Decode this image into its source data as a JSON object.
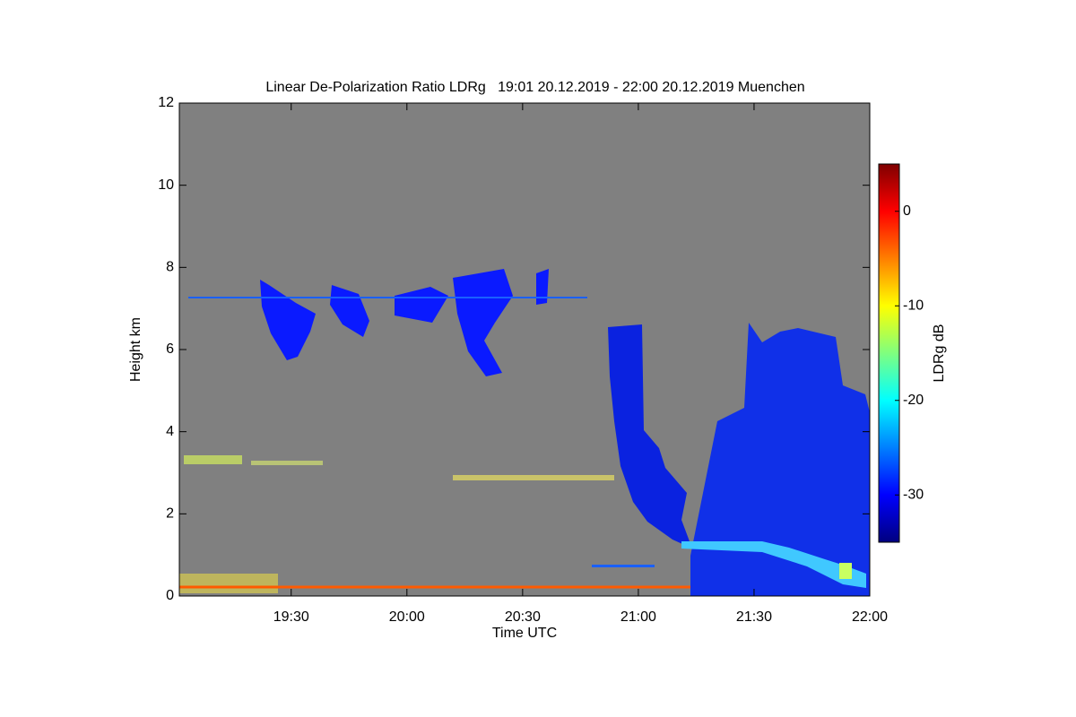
{
  "chart_data": {
    "type": "heatmap",
    "title": "Linear De-Polarization Ratio LDRg   19:01 20.12.2019 - 22:00 20.12.2019 Muenchen",
    "x_label": "Time UTC",
    "y_label": "Height km",
    "xlim": [
      1141,
      1320
    ],
    "xticks": [
      {
        "value": 1170,
        "label": "19:30"
      },
      {
        "value": 1200,
        "label": "20:00"
      },
      {
        "value": 1230,
        "label": "20:30"
      },
      {
        "value": 1260,
        "label": "21:00"
      },
      {
        "value": 1290,
        "label": "21:30"
      },
      {
        "value": 1320,
        "label": "22:00"
      }
    ],
    "ylim": [
      0,
      12
    ],
    "yticks": [
      0,
      2,
      4,
      6,
      8,
      10,
      12
    ],
    "background": "#808080",
    "colorbar": {
      "label": "LDRg dB",
      "lim": [
        -35,
        5
      ],
      "ticks": [
        0,
        -10,
        -20,
        -30
      ],
      "colors": [
        "#00007f",
        "#0000ff",
        "#007fff",
        "#00ffff",
        "#7fff7f",
        "#ffff00",
        "#ff7f00",
        "#ff0000",
        "#7f0000"
      ]
    }
  }
}
